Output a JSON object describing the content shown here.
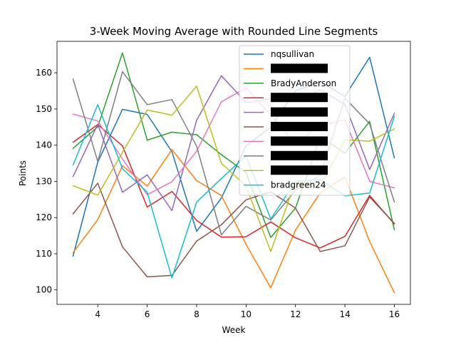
{
  "chart_data": {
    "type": "line",
    "title": "3-Week Moving Average with Rounded Line Segments",
    "xlabel": "Week",
    "ylabel": "Points",
    "xlim": [
      2.35,
      16.65
    ],
    "ylim": [
      96.0,
      168.7
    ],
    "xticks": [
      4,
      6,
      8,
      10,
      12,
      14,
      16
    ],
    "yticks": [
      100,
      110,
      120,
      130,
      140,
      150,
      160
    ],
    "grid": false,
    "legend_position": "top-right",
    "x": [
      3,
      4,
      5,
      6,
      7,
      8,
      9,
      10,
      11,
      12,
      13,
      14,
      15,
      16
    ],
    "series": [
      {
        "name": "nqsullivan",
        "color": "#1f77b4",
        "redacted": false,
        "values": [
          109.3,
          135.3,
          149.9,
          148.5,
          138.2,
          116.2,
          125.4,
          139.8,
          145.0,
          155.0,
          157.5,
          153.5,
          164.3,
          136.5
        ]
      },
      {
        "name": "",
        "color": "#ff7f0e",
        "redacted": true,
        "values": [
          110.3,
          119.4,
          134.3,
          128.7,
          138.8,
          130.2,
          126.1,
          112.6,
          100.6,
          116.5,
          126.8,
          131.2,
          113.4,
          99.2
        ]
      },
      {
        "name": "BradyAnderson",
        "color": "#2ca02c",
        "redacted": false,
        "values": [
          139.1,
          145.1,
          165.5,
          141.4,
          143.6,
          142.9,
          137.4,
          132.4,
          114.5,
          122.6,
          142.3,
          137.8,
          146.6,
          116.6
        ]
      },
      {
        "name": "",
        "color": "#d62728",
        "redacted": true,
        "values": [
          140.8,
          145.7,
          139.8,
          122.9,
          127.2,
          119.2,
          114.6,
          114.7,
          118.8,
          114.4,
          111.6,
          114.8,
          126.1,
          118.2
        ]
      },
      {
        "name": "",
        "color": "#9467bd",
        "redacted": true,
        "values": [
          131.3,
          145.8,
          127.0,
          131.8,
          121.9,
          146.9,
          159.2,
          151.8,
          152.8,
          152.1,
          155.3,
          151.3,
          133.3,
          148.8
        ]
      },
      {
        "name": "",
        "color": "#8c564b",
        "redacted": true,
        "values": [
          121.0,
          129.5,
          111.9,
          103.6,
          104.0,
          113.5,
          118.0,
          124.9,
          127.1,
          122.6,
          110.6,
          112.2,
          125.7,
          118.4
        ]
      },
      {
        "name": "",
        "color": "#e377c2",
        "redacted": true,
        "values": [
          148.6,
          146.7,
          136.2,
          126.3,
          129.9,
          138.3,
          152.0,
          155.8,
          148.4,
          140.4,
          145.4,
          147.0,
          130.0,
          128.2
        ]
      },
      {
        "name": "",
        "color": "#7f7f7f",
        "redacted": true,
        "values": [
          158.3,
          135.5,
          160.3,
          151.2,
          152.6,
          139.7,
          115.2,
          123.1,
          119.3,
          127.5,
          131.7,
          153.0,
          145.9,
          124.3
        ]
      },
      {
        "name": "",
        "color": "#bcbd22",
        "redacted": true,
        "values": [
          128.8,
          126.2,
          138.0,
          149.7,
          148.3,
          156.3,
          135.0,
          128.7,
          110.6,
          130.0,
          128.5,
          141.5,
          141.1,
          144.5
        ]
      },
      {
        "name": "bradgreen24",
        "color": "#17becf",
        "redacted": false,
        "values": [
          134.5,
          151.2,
          133.5,
          127.0,
          103.3,
          124.3,
          130.8,
          137.1,
          119.6,
          130.0,
          130.5,
          126.0,
          126.8,
          148.0
        ]
      }
    ]
  }
}
